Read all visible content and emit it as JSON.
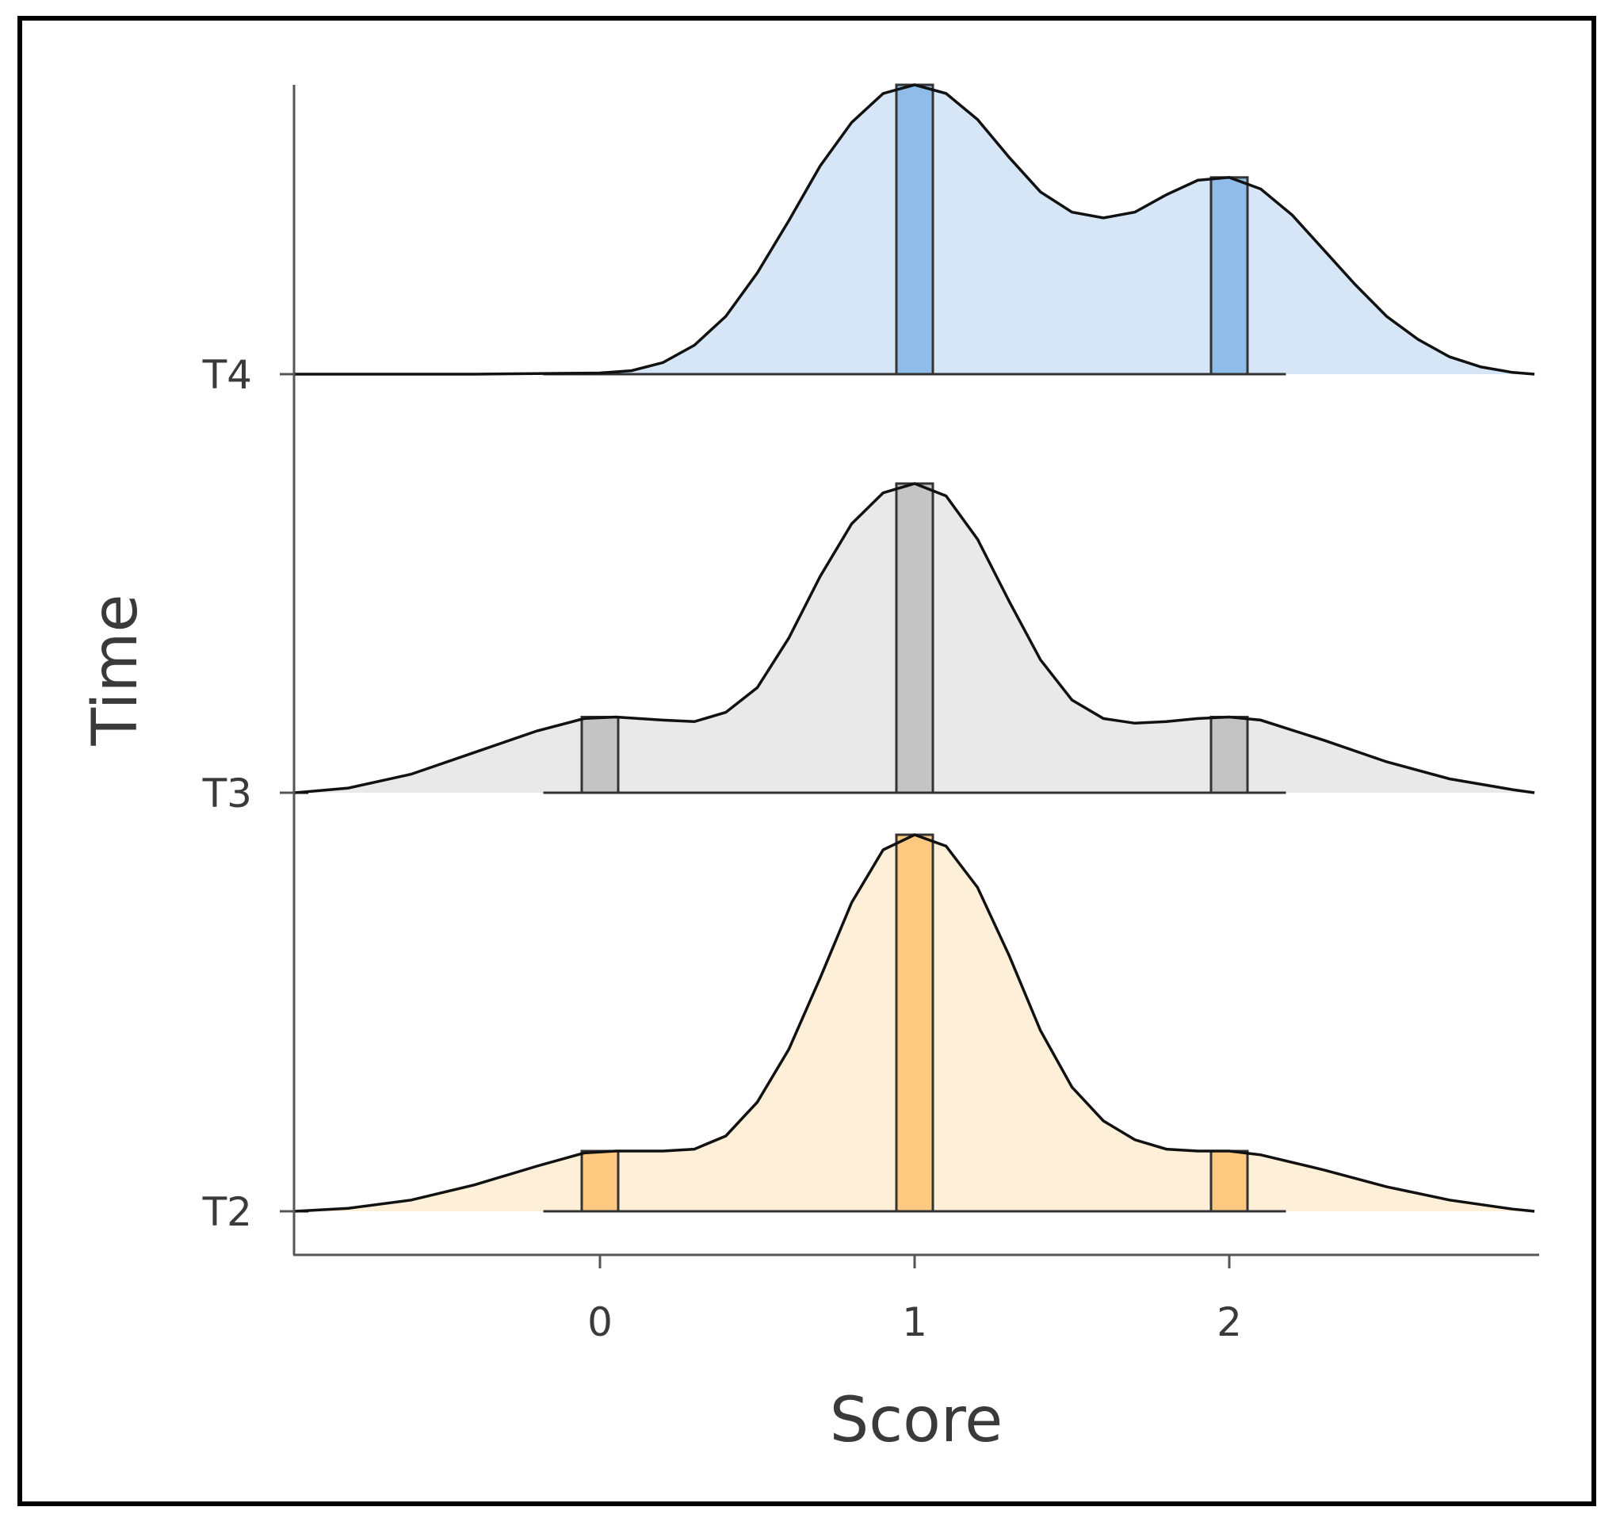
{
  "chart_data": {
    "type": "ridgeline",
    "xlabel": "Score",
    "ylabel": "Time",
    "xlim": [
      -0.97,
      2.97
    ],
    "x_ticks": [
      "0",
      "1",
      "2"
    ],
    "grid": false,
    "legend": "none",
    "series": [
      {
        "name": "T2",
        "color": "#fdc980",
        "fill": "#fdefd8",
        "density_points": [
          [
            -0.97,
            0.0
          ],
          [
            -0.8,
            0.008
          ],
          [
            -0.6,
            0.03
          ],
          [
            -0.4,
            0.07
          ],
          [
            -0.2,
            0.12
          ],
          [
            -0.05,
            0.155
          ],
          [
            0.05,
            0.16
          ],
          [
            0.2,
            0.16
          ],
          [
            0.3,
            0.165
          ],
          [
            0.4,
            0.2
          ],
          [
            0.5,
            0.29
          ],
          [
            0.6,
            0.43
          ],
          [
            0.7,
            0.62
          ],
          [
            0.8,
            0.82
          ],
          [
            0.9,
            0.96
          ],
          [
            1.0,
            1.0
          ],
          [
            1.1,
            0.97
          ],
          [
            1.2,
            0.86
          ],
          [
            1.3,
            0.68
          ],
          [
            1.4,
            0.48
          ],
          [
            1.5,
            0.33
          ],
          [
            1.6,
            0.24
          ],
          [
            1.7,
            0.19
          ],
          [
            1.8,
            0.165
          ],
          [
            1.9,
            0.16
          ],
          [
            2.0,
            0.16
          ],
          [
            2.1,
            0.15
          ],
          [
            2.3,
            0.11
          ],
          [
            2.5,
            0.065
          ],
          [
            2.7,
            0.03
          ],
          [
            2.9,
            0.006
          ],
          [
            2.97,
            0.0
          ]
        ],
        "bars": [
          {
            "x": 0,
            "height": 0.16
          },
          {
            "x": 1,
            "height": 1.0
          },
          {
            "x": 2,
            "height": 0.16
          }
        ]
      },
      {
        "name": "T3",
        "color": "#c4c4c4",
        "fill": "#e9e9e9",
        "density_points": [
          [
            -0.97,
            0.0
          ],
          [
            -0.8,
            0.015
          ],
          [
            -0.6,
            0.06
          ],
          [
            -0.4,
            0.13
          ],
          [
            -0.2,
            0.2
          ],
          [
            -0.05,
            0.24
          ],
          [
            0.05,
            0.245
          ],
          [
            0.2,
            0.235
          ],
          [
            0.3,
            0.23
          ],
          [
            0.4,
            0.26
          ],
          [
            0.5,
            0.34
          ],
          [
            0.6,
            0.5
          ],
          [
            0.7,
            0.7
          ],
          [
            0.8,
            0.87
          ],
          [
            0.9,
            0.97
          ],
          [
            1.0,
            1.0
          ],
          [
            1.1,
            0.96
          ],
          [
            1.2,
            0.82
          ],
          [
            1.3,
            0.62
          ],
          [
            1.4,
            0.43
          ],
          [
            1.5,
            0.3
          ],
          [
            1.6,
            0.24
          ],
          [
            1.7,
            0.225
          ],
          [
            1.8,
            0.23
          ],
          [
            1.9,
            0.24
          ],
          [
            2.0,
            0.245
          ],
          [
            2.1,
            0.235
          ],
          [
            2.3,
            0.17
          ],
          [
            2.5,
            0.1
          ],
          [
            2.7,
            0.045
          ],
          [
            2.9,
            0.01
          ],
          [
            2.97,
            0.0
          ]
        ],
        "bars": [
          {
            "x": 0,
            "height": 0.245
          },
          {
            "x": 1,
            "height": 1.0
          },
          {
            "x": 2,
            "height": 0.245
          }
        ]
      },
      {
        "name": "T4",
        "color": "#8fbce8",
        "fill": "#d7e6f7",
        "density_points": [
          [
            -0.97,
            0.0
          ],
          [
            -0.4,
            0.0
          ],
          [
            0.0,
            0.004
          ],
          [
            0.1,
            0.012
          ],
          [
            0.2,
            0.04
          ],
          [
            0.3,
            0.1
          ],
          [
            0.4,
            0.2
          ],
          [
            0.5,
            0.35
          ],
          [
            0.6,
            0.53
          ],
          [
            0.7,
            0.72
          ],
          [
            0.8,
            0.87
          ],
          [
            0.9,
            0.97
          ],
          [
            1.0,
            1.0
          ],
          [
            1.1,
            0.97
          ],
          [
            1.2,
            0.88
          ],
          [
            1.3,
            0.75
          ],
          [
            1.4,
            0.63
          ],
          [
            1.5,
            0.56
          ],
          [
            1.6,
            0.54
          ],
          [
            1.7,
            0.56
          ],
          [
            1.8,
            0.62
          ],
          [
            1.9,
            0.67
          ],
          [
            2.0,
            0.68
          ],
          [
            2.1,
            0.64
          ],
          [
            2.2,
            0.55
          ],
          [
            2.3,
            0.43
          ],
          [
            2.4,
            0.31
          ],
          [
            2.5,
            0.2
          ],
          [
            2.6,
            0.12
          ],
          [
            2.7,
            0.06
          ],
          [
            2.8,
            0.025
          ],
          [
            2.9,
            0.006
          ],
          [
            2.97,
            0.0
          ]
        ],
        "bars": [
          {
            "x": 1,
            "height": 1.0
          },
          {
            "x": 2,
            "height": 0.68
          }
        ]
      }
    ]
  }
}
